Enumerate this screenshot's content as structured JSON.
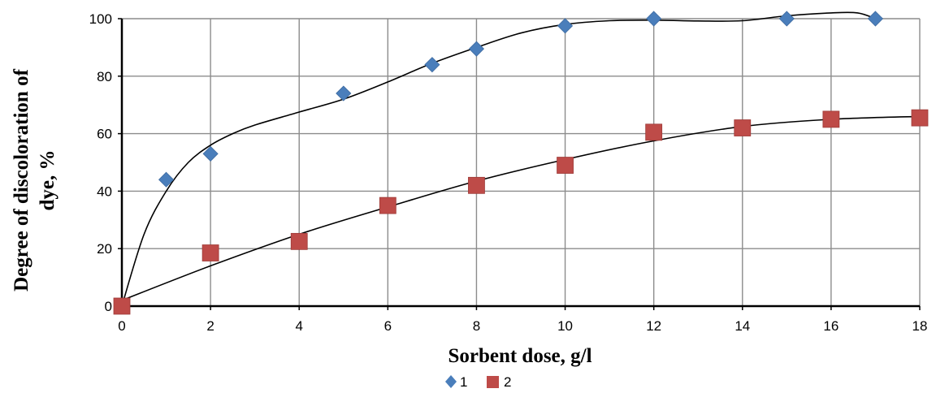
{
  "chart_data": {
    "type": "scatter",
    "title": "",
    "xlabel": "Sorbent dose, g/l",
    "ylabel_line1": "Degree of discoloration of",
    "ylabel_line2": "dye, %",
    "xlim": [
      0,
      18
    ],
    "ylim": [
      0,
      100
    ],
    "x_ticks": [
      "0",
      "2",
      "4",
      "6",
      "8",
      "10",
      "12",
      "14",
      "16",
      "18"
    ],
    "y_ticks": [
      "0",
      "20",
      "40",
      "60",
      "80",
      "100"
    ],
    "grid": true,
    "legend_position": "bottom",
    "series": [
      {
        "name": "1",
        "marker": "diamond",
        "color": "#4a7ebb",
        "x": [
          0,
          1,
          2,
          5,
          7,
          8,
          10,
          12,
          15,
          17
        ],
        "y": [
          0,
          44,
          53,
          74,
          84,
          89.5,
          97.5,
          100,
          100,
          100
        ],
        "trend": [
          [
            0,
            0
          ],
          [
            0.5,
            25
          ],
          [
            1,
            40
          ],
          [
            1.5,
            50
          ],
          [
            2,
            56
          ],
          [
            2.5,
            60
          ],
          [
            3,
            63
          ],
          [
            4,
            67.5
          ],
          [
            5,
            72
          ],
          [
            6,
            78
          ],
          [
            7,
            84.5
          ],
          [
            8,
            90
          ],
          [
            9,
            95
          ],
          [
            10,
            98
          ],
          [
            11,
            99.3
          ],
          [
            12,
            99.5
          ],
          [
            13,
            99.2
          ],
          [
            14,
            99.3
          ],
          [
            15,
            101
          ],
          [
            16,
            102
          ],
          [
            16.6,
            102
          ],
          [
            17,
            100
          ]
        ]
      },
      {
        "name": "2",
        "marker": "square",
        "color": "#be4b48",
        "x": [
          0,
          2,
          4,
          6,
          8,
          10,
          12,
          14,
          16,
          18
        ],
        "y": [
          0,
          18.5,
          22.5,
          35,
          42,
          49,
          60.5,
          62,
          65,
          65.5
        ],
        "trend": [
          [
            0,
            2
          ],
          [
            2,
            14
          ],
          [
            4,
            25
          ],
          [
            6,
            34.5
          ],
          [
            8,
            43.5
          ],
          [
            10,
            51
          ],
          [
            12,
            57.5
          ],
          [
            14,
            62.5
          ],
          [
            16,
            65
          ],
          [
            18,
            66
          ]
        ]
      }
    ]
  }
}
